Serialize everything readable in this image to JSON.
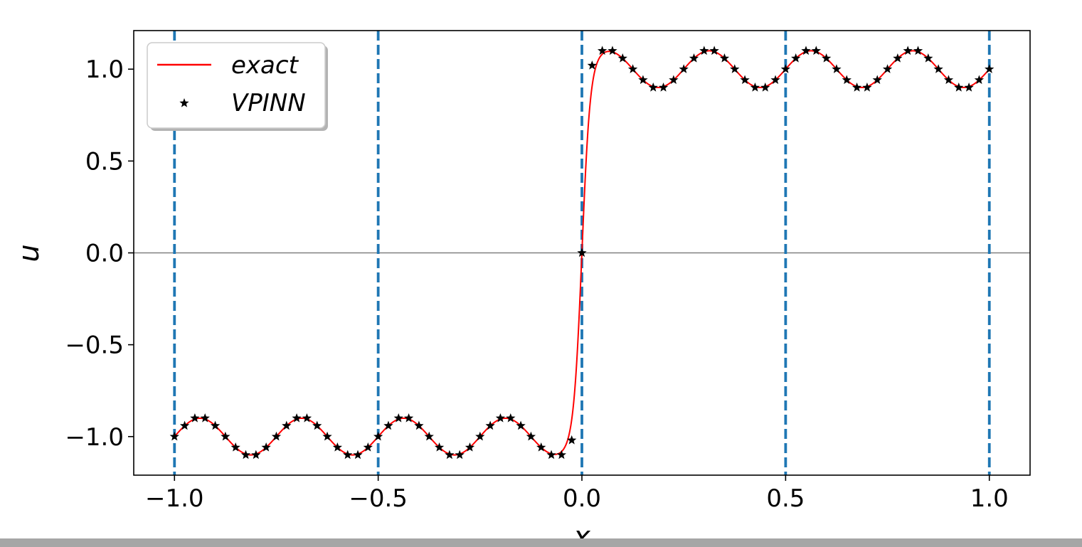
{
  "chart_data": {
    "type": "line",
    "title": "",
    "xlabel": "x",
    "ylabel": "u",
    "xlim": [
      -1.1,
      1.1
    ],
    "ylim": [
      -1.21,
      1.21
    ],
    "xticks": [
      -1.0,
      -0.5,
      0.0,
      0.5,
      1.0
    ],
    "xtick_labels": [
      "−1.0",
      "−0.5",
      "0.0",
      "0.5",
      "1.0"
    ],
    "yticks": [
      -1.0,
      -0.5,
      0.0,
      0.5,
      1.0
    ],
    "ytick_labels": [
      "−1.0",
      "−0.5",
      "0.0",
      "0.5",
      "1.0"
    ],
    "reference_line_y": 0.0,
    "element_boundaries": [
      -1.0,
      -0.5,
      0.0,
      0.5,
      1.0
    ],
    "legend_position": "upper-left",
    "series": [
      {
        "name": "exact",
        "style": "line",
        "color": "#ff0000",
        "function": "tanh(50x) + 0.1 sin(8πx)"
      },
      {
        "name": "VPINN",
        "style": "star-markers",
        "color": "#000000",
        "x": [
          -1.0,
          -0.975,
          -0.95,
          -0.925,
          -0.9,
          -0.875,
          -0.85,
          -0.825,
          -0.8,
          -0.775,
          -0.75,
          -0.725,
          -0.7,
          -0.675,
          -0.65,
          -0.625,
          -0.6,
          -0.575,
          -0.55,
          -0.525,
          -0.5,
          -0.475,
          -0.45,
          -0.425,
          -0.4,
          -0.375,
          -0.35,
          -0.325,
          -0.3,
          -0.275,
          -0.25,
          -0.225,
          -0.2,
          -0.175,
          -0.15,
          -0.125,
          -0.1,
          -0.075,
          -0.05,
          -0.025,
          0.0,
          0.025,
          0.05,
          0.075,
          0.1,
          0.125,
          0.15,
          0.175,
          0.2,
          0.225,
          0.25,
          0.275,
          0.3,
          0.325,
          0.35,
          0.375,
          0.4,
          0.425,
          0.45,
          0.475,
          0.5,
          0.525,
          0.55,
          0.575,
          0.6,
          0.625,
          0.65,
          0.675,
          0.7,
          0.725,
          0.75,
          0.775,
          0.8,
          0.825,
          0.85,
          0.875,
          0.9,
          0.925,
          0.95,
          0.975,
          1.0
        ],
        "y": [
          -1.0,
          -0.941,
          -0.9,
          -0.9,
          -0.941,
          -1.0,
          -1.059,
          -1.1,
          -1.1,
          -1.059,
          -1.0,
          -0.941,
          -0.9,
          -0.9,
          -0.941,
          -1.0,
          -1.059,
          -1.1,
          -1.1,
          -1.059,
          -1.0,
          -0.941,
          -0.9,
          -0.9,
          -0.941,
          -1.0,
          -1.059,
          -1.1,
          -1.1,
          -1.059,
          -1.0,
          -0.941,
          -0.9,
          -0.9,
          -0.941,
          -1.0,
          -1.059,
          -1.1,
          -1.1,
          -1.02,
          0.0,
          1.02,
          1.1,
          1.1,
          1.059,
          1.0,
          0.941,
          0.9,
          0.9,
          0.941,
          1.0,
          1.059,
          1.1,
          1.1,
          1.059,
          1.0,
          0.941,
          0.9,
          0.9,
          0.941,
          1.0,
          1.059,
          1.1,
          1.1,
          1.059,
          1.0,
          0.941,
          0.9,
          0.9,
          0.941,
          1.0,
          1.059,
          1.1,
          1.1,
          1.059,
          1.0,
          0.941,
          0.9,
          0.9,
          0.941,
          1.0
        ]
      }
    ],
    "grid": false
  },
  "colors": {
    "exact_line": "#ff0000",
    "markers": "#000000",
    "boundary_lines": "#1f77b4",
    "zero_line": "#808080",
    "bottom_bar": "#a6a6a6"
  }
}
